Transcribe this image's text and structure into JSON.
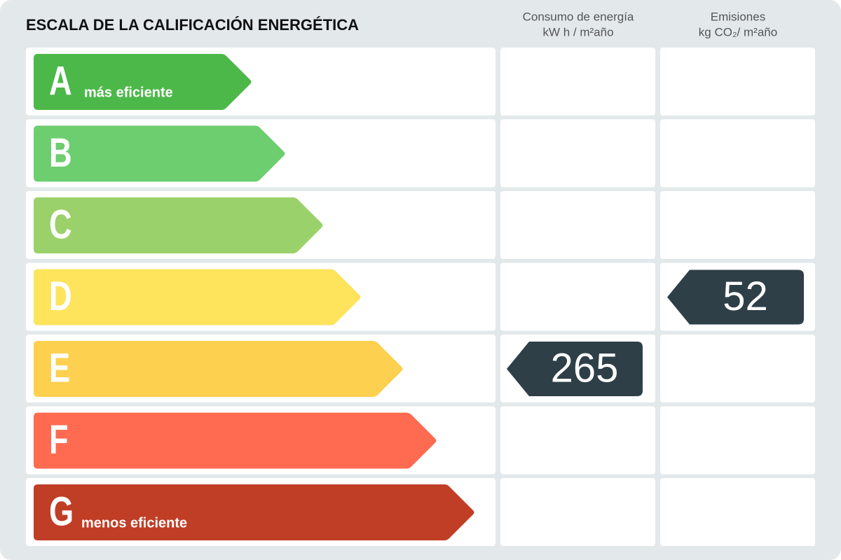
{
  "header": {
    "title": "ESCALA DE LA CALIFICACIÓN ENERGÉTICA",
    "consumption": {
      "title": "Consumo de energía",
      "unit": "kW h / m²año"
    },
    "emissions": {
      "title": "Emisiones",
      "unit": "kg CO₂/ m²año"
    }
  },
  "rows": [
    {
      "letter": "A",
      "label": "más eficiente",
      "color": "#4cb849"
    },
    {
      "letter": "B",
      "color": "#6dce6f"
    },
    {
      "letter": "C",
      "color": "#9bd16b"
    },
    {
      "letter": "D",
      "color": "#fde45c",
      "emissions": 52
    },
    {
      "letter": "E",
      "color": "#fed04f",
      "consumption": 265
    },
    {
      "letter": "F",
      "color": "#fe6b51"
    },
    {
      "letter": "G",
      "label": "menos eficiente",
      "color": "#c03d26"
    }
  ]
}
